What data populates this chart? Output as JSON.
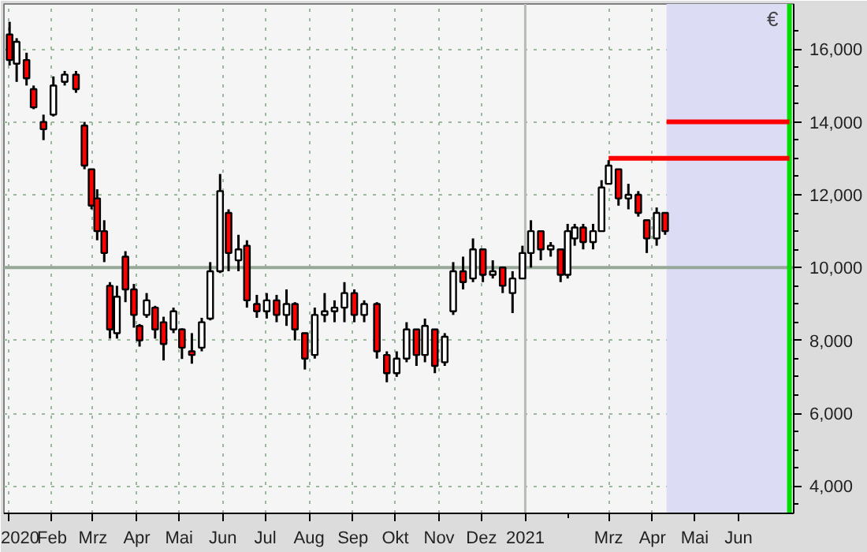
{
  "chart_data": {
    "type": "candlestick",
    "ylabel": "€",
    "legend": false,
    "grid": true,
    "xlim": [
      "2019-12-29",
      "2021-07-10"
    ],
    "ylim": [
      3250,
      17240
    ],
    "x": [
      "2020-01-02",
      "2020-01-07",
      "2020-01-14",
      "2020-01-19",
      "2020-01-26",
      "2020-02-02",
      "2020-02-10",
      "2020-02-18",
      "2020-02-24",
      "2020-02-29",
      "2020-03-04",
      "2020-03-09",
      "2020-03-13",
      "2020-03-18",
      "2020-03-24",
      "2020-03-30",
      "2020-04-03",
      "2020-04-08",
      "2020-04-14",
      "2020-04-20",
      "2020-04-27",
      "2020-05-03",
      "2020-05-10",
      "2020-05-17",
      "2020-05-23",
      "2020-05-30",
      "2020-06-05",
      "2020-06-12",
      "2020-06-18",
      "2020-06-25",
      "2020-07-02",
      "2020-07-09",
      "2020-07-16",
      "2020-07-22",
      "2020-07-29",
      "2020-08-05",
      "2020-08-12",
      "2020-08-19",
      "2020-08-26",
      "2020-09-02",
      "2020-09-09",
      "2020-09-18",
      "2020-09-25",
      "2020-10-02",
      "2020-10-09",
      "2020-10-16",
      "2020-10-22",
      "2020-10-29",
      "2020-11-05",
      "2020-11-11",
      "2020-11-18",
      "2020-11-25",
      "2020-12-02",
      "2020-12-09",
      "2020-12-16",
      "2020-12-23",
      "2020-12-30",
      "2021-01-05",
      "2021-01-12",
      "2021-01-19",
      "2021-01-26",
      "2021-01-31",
      "2021-02-05",
      "2021-02-11",
      "2021-02-18",
      "2021-02-24",
      "2021-03-01",
      "2021-03-08",
      "2021-03-15",
      "2021-03-22",
      "2021-03-28",
      "2021-04-04",
      "2021-04-10"
    ],
    "ohlc": [
      [
        16400,
        16750,
        15550,
        15700
      ],
      [
        15600,
        16300,
        15100,
        16200
      ],
      [
        15700,
        15900,
        15000,
        15200
      ],
      [
        14900,
        15000,
        14350,
        14400
      ],
      [
        14000,
        14200,
        13500,
        13800
      ],
      [
        14200,
        15250,
        14150,
        15000
      ],
      [
        15100,
        15400,
        15000,
        15300
      ],
      [
        15300,
        15400,
        14800,
        14900
      ],
      [
        13900,
        14000,
        12700,
        12800
      ],
      [
        12700,
        12700,
        11600,
        11700
      ],
      [
        11900,
        12150,
        10750,
        11000
      ],
      [
        11000,
        11300,
        10150,
        10400
      ],
      [
        9500,
        9600,
        8050,
        8300
      ],
      [
        8200,
        9500,
        8050,
        9200
      ],
      [
        10300,
        10450,
        9050,
        9400
      ],
      [
        9400,
        9550,
        8350,
        8700
      ],
      [
        8400,
        8450,
        7830,
        8000
      ],
      [
        8700,
        9300,
        8620,
        9100
      ],
      [
        8900,
        8950,
        8050,
        8300
      ],
      [
        8500,
        8650,
        7450,
        7900
      ],
      [
        8300,
        8900,
        8200,
        8800
      ],
      [
        8300,
        8330,
        7490,
        7800
      ],
      [
        7700,
        8200,
        7360,
        7600
      ],
      [
        7800,
        8620,
        7700,
        8500
      ],
      [
        8600,
        10150,
        8550,
        9900
      ],
      [
        9900,
        12570,
        9850,
        12100
      ],
      [
        11500,
        11600,
        9900,
        10400
      ],
      [
        10200,
        10900,
        9900,
        10500
      ],
      [
        10600,
        10750,
        8900,
        9100
      ],
      [
        9000,
        9250,
        8620,
        8800
      ],
      [
        8800,
        9300,
        8600,
        9100
      ],
      [
        9100,
        9250,
        8500,
        8700
      ],
      [
        8700,
        9400,
        8400,
        9000
      ],
      [
        9000,
        9050,
        8000,
        8300
      ],
      [
        8200,
        8200,
        7200,
        7500
      ],
      [
        7600,
        8900,
        7500,
        8700
      ],
      [
        8700,
        9300,
        8500,
        8800
      ],
      [
        8800,
        9100,
        8500,
        8900
      ],
      [
        8900,
        9600,
        8500,
        9300
      ],
      [
        9300,
        9400,
        8500,
        8700
      ],
      [
        8700,
        9100,
        8500,
        9000
      ],
      [
        9000,
        9050,
        7500,
        7700
      ],
      [
        7600,
        7700,
        6850,
        7100
      ],
      [
        7100,
        7700,
        7000,
        7500
      ],
      [
        7500,
        8500,
        7400,
        8300
      ],
      [
        8300,
        8300,
        7300,
        7600
      ],
      [
        7600,
        8600,
        7400,
        8400
      ],
      [
        8300,
        8300,
        7100,
        7300
      ],
      [
        7400,
        8200,
        7300,
        8100
      ],
      [
        8800,
        10150,
        8700,
        9900
      ],
      [
        9900,
        10300,
        9400,
        9600
      ],
      [
        9700,
        10800,
        9600,
        10500
      ],
      [
        10500,
        10500,
        9600,
        9800
      ],
      [
        9800,
        10200,
        9700,
        9900
      ],
      [
        10000,
        10000,
        9300,
        9500
      ],
      [
        9300,
        9900,
        8750,
        9700
      ],
      [
        9700,
        10600,
        9700,
        10400
      ],
      [
        10400,
        11300,
        10000,
        11000
      ],
      [
        11000,
        11000,
        10200,
        10500
      ],
      [
        10500,
        10700,
        10300,
        10600
      ],
      [
        10500,
        10500,
        9600,
        9800
      ],
      [
        9800,
        11200,
        9700,
        11000
      ],
      [
        10800,
        11200,
        10600,
        11100
      ],
      [
        11100,
        11200,
        10500,
        10700
      ],
      [
        10700,
        11200,
        10500,
        11000
      ],
      [
        11000,
        12400,
        11000,
        12200
      ],
      [
        12300,
        12950,
        12300,
        12800
      ],
      [
        12700,
        12700,
        11700,
        11900
      ],
      [
        11900,
        12300,
        11600,
        12000
      ],
      [
        12000,
        12100,
        11400,
        11500
      ],
      [
        11300,
        11300,
        10400,
        10800
      ],
      [
        10800,
        11650,
        10600,
        11500
      ],
      [
        11500,
        11500,
        10900,
        11000
      ]
    ],
    "series": [
      {
        "type": "line",
        "color": "#ff0000",
        "x": [
          "2021-03-01",
          "2021-07-07"
        ],
        "values": [
          13000,
          13000
        ]
      },
      {
        "type": "line",
        "color": "#ff0000",
        "x": [
          "2021-04-11",
          "2021-07-07"
        ],
        "values": [
          14000,
          14000
        ]
      }
    ],
    "ref_lines": [
      {
        "axis": "y",
        "value": 10000,
        "color": "#98a898"
      },
      {
        "axis": "x",
        "value": "2021-01-01",
        "color": "#b4beb4"
      },
      {
        "axis": "x",
        "value": "2021-07-07",
        "color": "#00dd00"
      }
    ],
    "bands": [
      {
        "axis": "x",
        "from": "2021-04-11",
        "to": "2021-07-07",
        "color": "#dcdcf4"
      }
    ],
    "xticks": [
      {
        "value": "2020-01-01",
        "label": "2020"
      },
      {
        "value": "2020-02-01",
        "label": "Feb"
      },
      {
        "value": "2020-03-01",
        "label": "Mrz"
      },
      {
        "value": "2020-04-01",
        "label": "Apr"
      },
      {
        "value": "2020-05-01",
        "label": "Mai"
      },
      {
        "value": "2020-06-01",
        "label": "Jun"
      },
      {
        "value": "2020-07-01",
        "label": "Jul"
      },
      {
        "value": "2020-08-01",
        "label": "Aug"
      },
      {
        "value": "2020-09-01",
        "label": "Sep"
      },
      {
        "value": "2020-10-01",
        "label": "Okt"
      },
      {
        "value": "2020-11-01",
        "label": "Nov"
      },
      {
        "value": "2020-12-01",
        "label": "Dez"
      },
      {
        "value": "2021-01-01",
        "label": "2021"
      },
      {
        "value": "2021-02-01",
        "label": null
      },
      {
        "value": "2021-03-01",
        "label": "Mrz"
      },
      {
        "value": "2021-04-01",
        "label": "Apr"
      },
      {
        "value": "2021-05-01",
        "label": "Mai"
      },
      {
        "value": "2021-06-01",
        "label": "Jun"
      }
    ],
    "yticks": [
      {
        "value": 3500,
        "label": null
      },
      {
        "value": 4000,
        "label": "4,000"
      },
      {
        "value": 4500,
        "label": null
      },
      {
        "value": 5000,
        "label": null
      },
      {
        "value": 5500,
        "label": null
      },
      {
        "value": 6000,
        "label": "6,000"
      },
      {
        "value": 6500,
        "label": null
      },
      {
        "value": 7000,
        "label": null
      },
      {
        "value": 7500,
        "label": null
      },
      {
        "value": 8000,
        "label": "8,000"
      },
      {
        "value": 8500,
        "label": null
      },
      {
        "value": 9000,
        "label": null
      },
      {
        "value": 9500,
        "label": null
      },
      {
        "value": 10000,
        "label": "10,000"
      },
      {
        "value": 10500,
        "label": null
      },
      {
        "value": 11000,
        "label": null
      },
      {
        "value": 11500,
        "label": null
      },
      {
        "value": 12000,
        "label": "12,000"
      },
      {
        "value": 12500,
        "label": null
      },
      {
        "value": 13000,
        "label": null
      },
      {
        "value": 13500,
        "label": null
      },
      {
        "value": 14000,
        "label": "14,000"
      },
      {
        "value": 14500,
        "label": null
      },
      {
        "value": 15000,
        "label": null
      },
      {
        "value": 15500,
        "label": null
      },
      {
        "value": 16000,
        "label": "16,000"
      },
      {
        "value": 16500,
        "label": null
      }
    ]
  }
}
